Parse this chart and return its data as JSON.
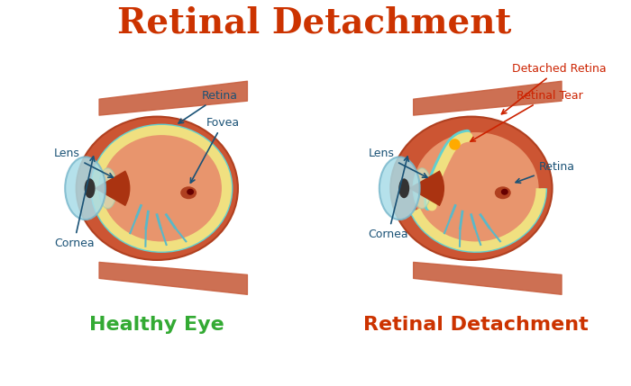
{
  "title": "Retinal Detachment",
  "title_color": "#cc3300",
  "title_fontsize": 28,
  "left_label": "Healthy Eye",
  "right_label": "Retinal Detachment",
  "label_color_left": "#33aa33",
  "label_color_right": "#cc3300",
  "label_fontsize": 16,
  "annotation_color": "#1a5276",
  "annotation_color_red": "#cc2200",
  "bg_color": "#ffffff",
  "eye_orange": "#cc5533",
  "eye_light_orange": "#e8956d",
  "eye_dark": "#b04020",
  "sclera_color": "#d4986a",
  "retina_yellow": "#f0e080",
  "cyan_layer": "#60d0d0",
  "cornea_blue": "#a8dce8",
  "cornea_dark": "#7ab8cc",
  "pupil_color": "#222222",
  "iris_color": "#884422",
  "vessel_color": "#5ab8c8",
  "muscle_color": "#c86040"
}
